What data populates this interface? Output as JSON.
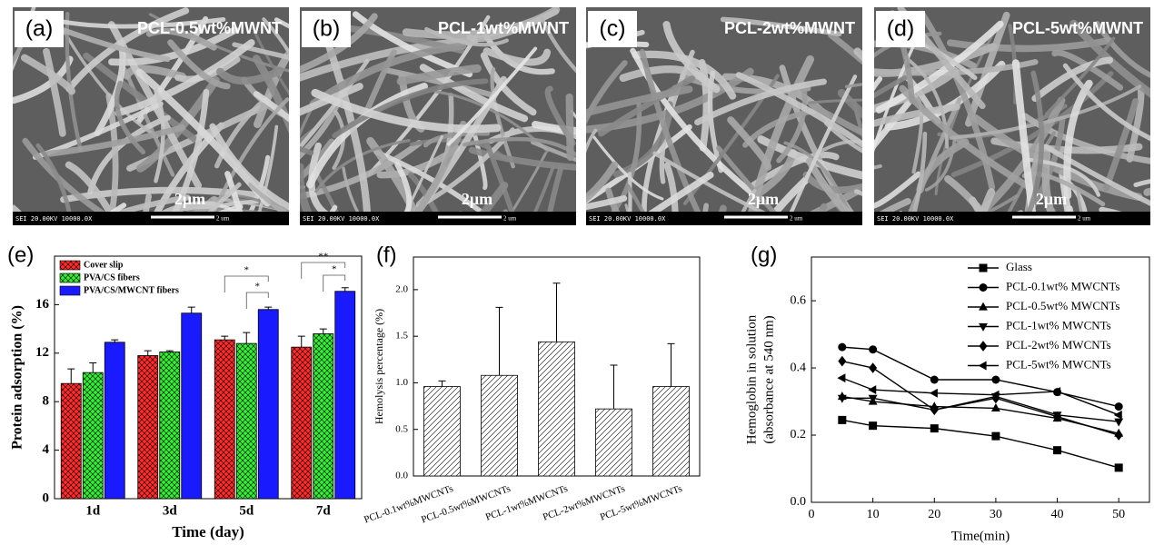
{
  "panels": [
    {
      "label": "(a)",
      "caption": "PCL-0.5wt%MWNT",
      "scale": "2μm",
      "info": "SEI 20.00KV 10000.0X",
      "unit": "2 um"
    },
    {
      "label": "(b)",
      "caption": "PCL-1wt%MWNT",
      "scale": "2μm",
      "info": "SEI 20.00KV 10000.0X",
      "unit": "2 um"
    },
    {
      "label": "(c)",
      "caption": "PCL-2wt%MWNT",
      "scale": "2μm",
      "info": "SEI 20.00KV 10000.0X",
      "unit": "2 um"
    },
    {
      "label": "(d)",
      "caption": "PCL-5wt%MWNT",
      "scale": "2μm",
      "info": "SEI 20.00KV 10000.0X",
      "unit": "2 um"
    }
  ],
  "chart_data": [
    {
      "type": "bar",
      "panel_label": "(e)",
      "ylabel": "Protein adsorption (%)",
      "xlabel": "Time (day)",
      "categories": [
        "1d",
        "3d",
        "5d",
        "7d"
      ],
      "series": [
        {
          "name": "Cover slip",
          "color": "#ff2a2a",
          "hatch": "cross",
          "values": [
            9.5,
            11.8,
            13.1,
            12.5
          ],
          "errors": [
            1.2,
            0.4,
            0.3,
            0.9
          ]
        },
        {
          "name": "PVA/CS fibers",
          "color": "#33ee33",
          "hatch": "cross",
          "values": [
            10.4,
            12.1,
            12.8,
            13.6
          ],
          "errors": [
            0.8,
            0.1,
            0.9,
            0.4
          ]
        },
        {
          "name": "PVA/CS/MWCNT fibers",
          "color": "#1a1aff",
          "hatch": "none",
          "values": [
            12.9,
            15.3,
            15.6,
            17.1
          ],
          "errors": [
            0.2,
            0.5,
            0.2,
            0.3
          ]
        }
      ],
      "ylim": [
        0,
        20
      ],
      "yticks": [
        0,
        4,
        8,
        12,
        16
      ],
      "legend": "upper left",
      "annotations": [
        "*",
        "*",
        "**",
        "*"
      ]
    },
    {
      "type": "bar",
      "panel_label": "(f)",
      "ylabel": "Hemolysis percentage (%)",
      "categories": [
        "PCL-0.1wt%MWCNTs",
        "PCL-0.5wt%MWCNTs",
        "PCL-1wt%MWCNTs",
        "PCL-2wt%MWCNTs",
        "PCL-5wt%MWCNTs"
      ],
      "series": [
        {
          "color": "#ffffff",
          "hatch": "diagonal",
          "values": [
            0.96,
            1.08,
            1.44,
            0.72,
            0.96
          ],
          "errors": [
            0.06,
            0.73,
            0.63,
            0.47,
            0.46
          ]
        }
      ],
      "ylim": [
        0,
        2.35
      ],
      "yticks": [
        {
          "value": 0,
          "label": "0.0"
        },
        0.5,
        {
          "value": 1,
          "label": "1.0"
        },
        1.5,
        {
          "value": 2,
          "label": "2.0"
        }
      ]
    },
    {
      "type": "line",
      "panel_label": "(g)",
      "ylabel": [
        "Hemoglobin in solution",
        "(absorbance at 540 nm)"
      ],
      "xlabel": "Time(min)",
      "x": [
        5,
        10,
        20,
        30,
        40,
        50
      ],
      "series": [
        {
          "name": "Glass",
          "marker": "square",
          "color": "#000000",
          "values": [
            0.245,
            0.228,
            0.22,
            0.197,
            0.155,
            0.103
          ]
        },
        {
          "name": "PCL-0.1wt% MWCNTs",
          "marker": "circle",
          "color": "#000000",
          "values": [
            0.462,
            0.455,
            0.365,
            0.365,
            0.328,
            0.285
          ]
        },
        {
          "name": "PCL-0.5wt% MWCNTs",
          "marker": "triangle-up",
          "color": "#000000",
          "values": [
            0.315,
            0.3,
            0.285,
            0.28,
            0.25,
            0.205
          ]
        },
        {
          "name": "PCL-1wt% MWCNTs",
          "marker": "triangle-down",
          "color": "#000000",
          "values": [
            0.31,
            0.31,
            0.275,
            0.315,
            0.26,
            0.24
          ]
        },
        {
          "name": "PCL-2wt% MWCNTs",
          "marker": "diamond",
          "color": "#000000",
          "values": [
            0.42,
            0.4,
            0.275,
            0.31,
            0.255,
            0.2
          ]
        },
        {
          "name": "PCL-5wt% MWCNTs",
          "marker": "triangle-left",
          "color": "#000000",
          "values": [
            0.37,
            0.335,
            0.325,
            0.32,
            0.33,
            0.26
          ]
        }
      ],
      "xlim": [
        0,
        55
      ],
      "xticks": [
        0,
        10,
        20,
        30,
        40,
        50
      ],
      "ylim": [
        0,
        0.73
      ],
      "yticks": [
        {
          "value": 0,
          "label": "0.0"
        },
        0.2,
        0.4,
        0.6
      ],
      "legend": "upper right"
    }
  ]
}
